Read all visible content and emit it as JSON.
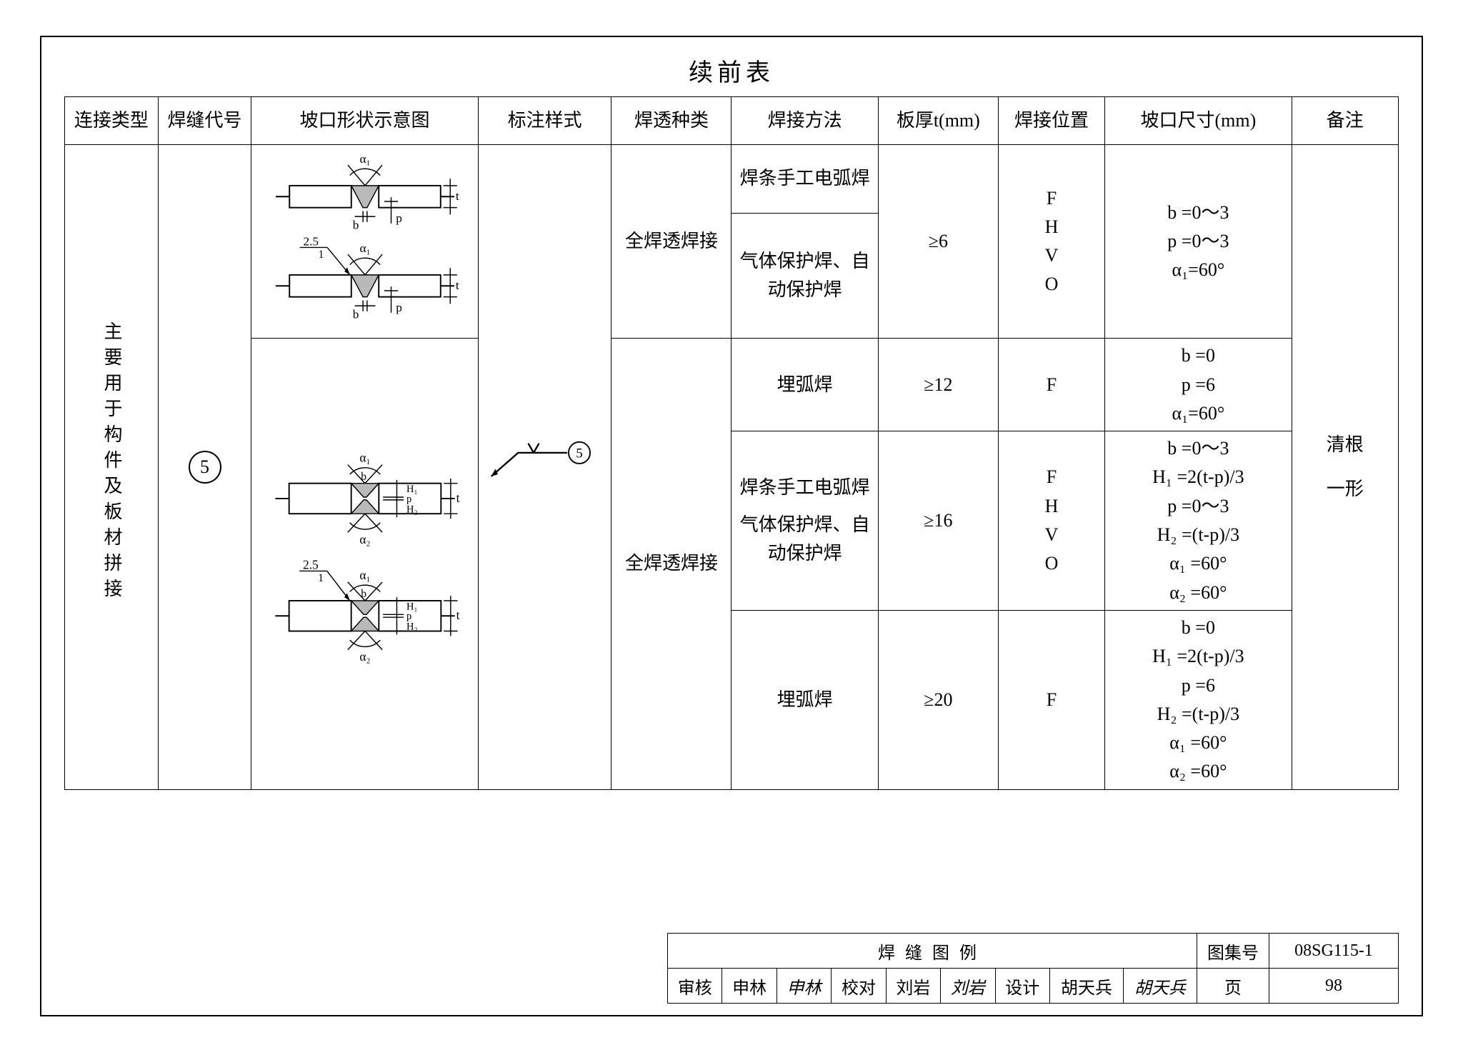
{
  "title": "续前表",
  "headers": {
    "c1": "连接类型",
    "c2": "焊缝代号",
    "c3": "坡口形状示意图",
    "c4": "标注样式",
    "c5": "焊透种类",
    "c6": "焊接方法",
    "c7": "板厚t(mm)",
    "c8": "焊接位置",
    "c9": "坡口尺寸(mm)",
    "c10": "备注"
  },
  "col_widths_pct": [
    7,
    7,
    17,
    10,
    9,
    11,
    9,
    8,
    14,
    8
  ],
  "conn_type": "主要用于构件及板材拼接",
  "weld_code": "5",
  "mark_style_code": "5",
  "pen_type": "全焊透焊接",
  "rows": [
    {
      "methods": [
        "焊条手工电弧焊",
        "气体保护焊、自动保护焊"
      ],
      "thick": "≥6",
      "pos_lines": [
        "F",
        "H",
        "V",
        "O"
      ],
      "dims": [
        "b =0～3",
        "p =0～3",
        "α₁=60°"
      ]
    },
    {
      "methods": [
        "埋弧焊"
      ],
      "thick": "≥12",
      "pos_lines": [
        "F"
      ],
      "dims": [
        "b =0",
        "p =6",
        "α₁=60°"
      ]
    },
    {
      "methods": [
        "焊条手工电弧焊",
        "气体保护焊、自动保护焊"
      ],
      "thick": "≥16",
      "pos_lines": [
        "F",
        "H",
        "V",
        "O"
      ],
      "dims": [
        "b =0～3",
        "H₁ =2(t-p)/3",
        "p =0～3",
        "H₂ =(t-p)/3",
        "α₁ =60°",
        "α₂ =60°"
      ]
    },
    {
      "methods": [
        "埋弧焊"
      ],
      "thick": "≥20",
      "pos_lines": [
        "F"
      ],
      "dims": [
        "b =0",
        "H₁ =2(t-p)/3",
        "p =6",
        "H₂ =(t-p)/3",
        "α₁ =60°",
        "α₂ =60°"
      ]
    }
  ],
  "remark_lines": [
    "清根",
    "一形"
  ],
  "diagram_labels": {
    "alpha1": "α₁",
    "alpha2": "α₂",
    "b": "b",
    "p": "p",
    "t": "t",
    "H1": "H₁",
    "H2": "H₂",
    "lead": "2.5",
    "lead_sub": "1"
  },
  "diagram_colors": {
    "stroke": "#000000",
    "fill_weld": "#b9b9b9",
    "fill_plate": "#ffffff"
  },
  "titleblock": {
    "main": "焊缝图例",
    "set_label": "图集号",
    "set_value": "08SG115-1",
    "page_label": "页",
    "page_value": "98",
    "review_label": "审核",
    "review_name": "申林",
    "review_sig": "申林",
    "check_label": "校对",
    "check_name": "刘岩",
    "check_sig": "刘岩",
    "design_label": "设计",
    "design_name": "胡天兵",
    "design_sig": "胡天兵"
  }
}
